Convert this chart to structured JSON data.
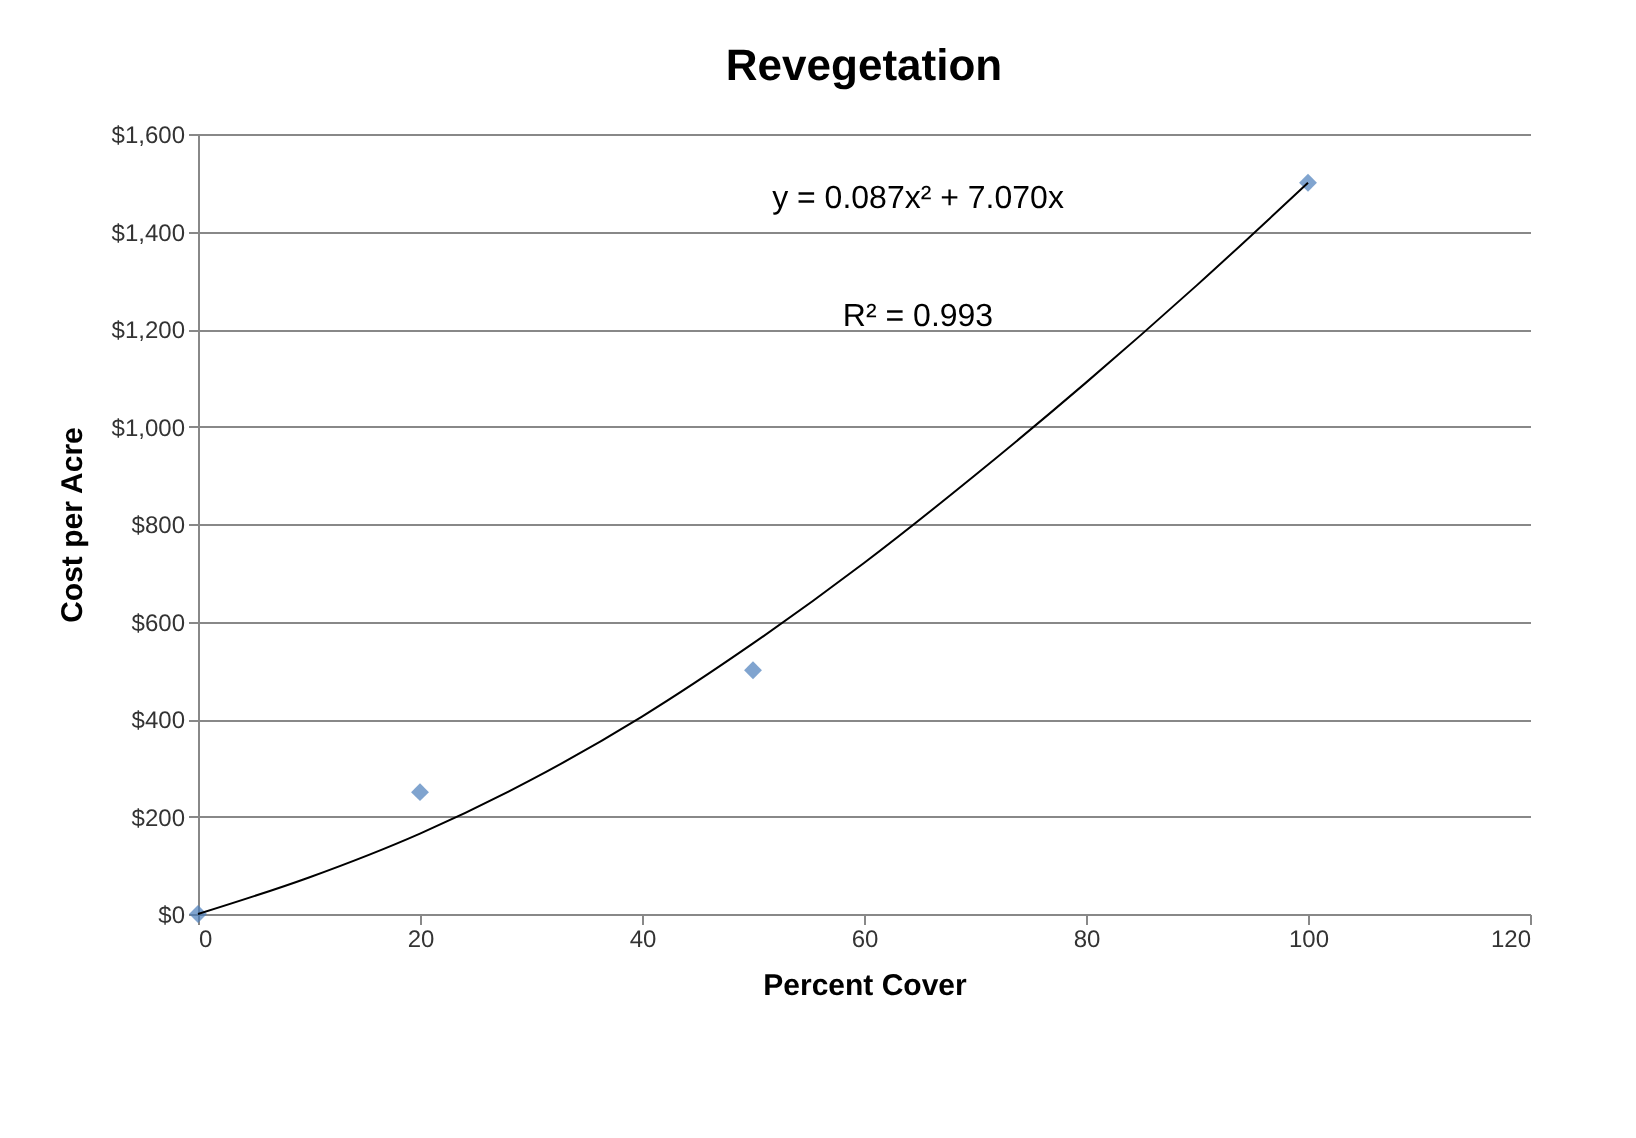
{
  "chart_data": {
    "type": "scatter",
    "title": "Revegetation",
    "xlabel": "Percent Cover",
    "ylabel": "Cost per Acre",
    "annotations": [
      "y = 0.087x² + 7.070x",
      "R² = 0.993"
    ],
    "series": [
      {
        "color": "#4a7ebb",
        "marker": "diamond",
        "x": [
          0,
          20,
          50,
          100
        ],
        "values": [
          0,
          250,
          500,
          1500
        ]
      },
      {
        "type": "line",
        "color": "#000000",
        "line_style": "solid",
        "marker": "none",
        "x": [
          0,
          10,
          20,
          30,
          40,
          50,
          60,
          70,
          80,
          90,
          100
        ],
        "values": [
          0,
          75,
          165,
          275,
          405,
          555,
          720,
          900,
          1090,
          1290,
          1500
        ]
      }
    ],
    "xlim": [
      0,
      120
    ],
    "xticks": [
      0,
      20,
      40,
      60,
      80,
      100,
      120
    ],
    "ylim": [
      0,
      1600
    ],
    "yticks": [
      {
        "value": 0,
        "label": "$0"
      },
      {
        "value": 200,
        "label": "$200"
      },
      {
        "value": 400,
        "label": "$400"
      },
      {
        "value": 600,
        "label": "$600"
      },
      {
        "value": 800,
        "label": "$800"
      },
      {
        "value": 1000,
        "label": "$1,000"
      },
      {
        "value": 1200,
        "label": "$1,200"
      },
      {
        "value": 1400,
        "label": "$1,400"
      },
      {
        "value": 1600,
        "label": "$1,600"
      }
    ],
    "grid": "y",
    "legend": false
  }
}
